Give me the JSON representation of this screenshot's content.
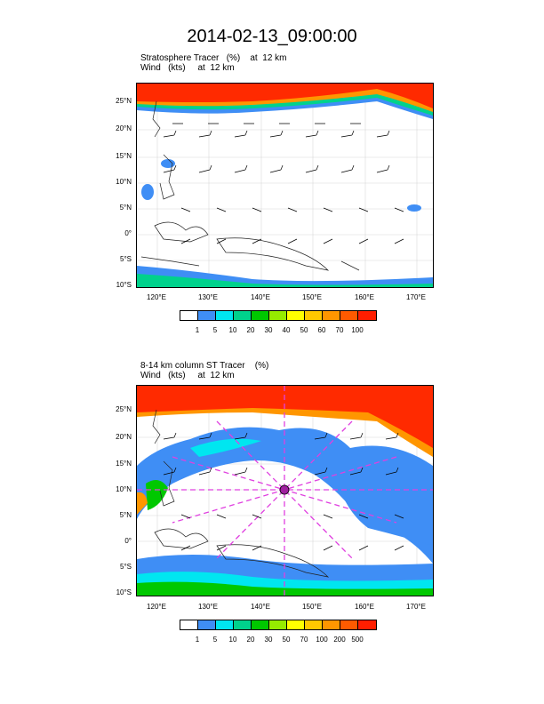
{
  "main_title": "2014-02-13_09:00:00",
  "panels": [
    {
      "title_line1": "Stratosphere Tracer   (%)    at  12 km",
      "title_line2": "Wind   (kts)     at  12 km",
      "lat_labels": [
        "25°N",
        "20°N",
        "15°N",
        "10°N",
        "5°N",
        "0°",
        "5°S",
        "10°S"
      ],
      "lon_labels": [
        "120°E",
        "130°E",
        "140°E",
        "150°E",
        "160°E",
        "170°E"
      ],
      "colorbar_labels": [
        "1",
        "5",
        "10",
        "20",
        "30",
        "40",
        "50",
        "60",
        "70",
        "100"
      ],
      "colorbar_colors": [
        "#ffffff",
        "#3f8ef5",
        "#00e6f0",
        "#00d28c",
        "#00c800",
        "#96eb00",
        "#ffff00",
        "#ffc800",
        "#ff9600",
        "#ff5a00",
        "#ff1e00"
      ]
    },
    {
      "title_line1": "8-14 km column ST Tracer    (%)",
      "title_line2": "Wind   (kts)     at  12 km",
      "lat_labels": [
        "25°N",
        "20°N",
        "15°N",
        "10°N",
        "5°N",
        "0°",
        "5°S",
        "10°S"
      ],
      "lon_labels": [
        "120°E",
        "130°E",
        "140°E",
        "150°E",
        "160°E",
        "170°E"
      ],
      "colorbar_labels": [
        "1",
        "5",
        "10",
        "20",
        "30",
        "50",
        "70",
        "100",
        "200",
        "500"
      ],
      "colorbar_colors": [
        "#ffffff",
        "#3f8ef5",
        "#00e6f0",
        "#00d28c",
        "#00c800",
        "#96eb00",
        "#ffff00",
        "#ffc800",
        "#ff9600",
        "#ff5a00",
        "#ff1e00"
      ]
    }
  ],
  "colors": {
    "tracer_high": "#ff2a00",
    "tracer_mid": "#ff9600",
    "tracer_low": "#3f8ef5",
    "cross_lines": "#e040e0",
    "coast": "#222222"
  }
}
